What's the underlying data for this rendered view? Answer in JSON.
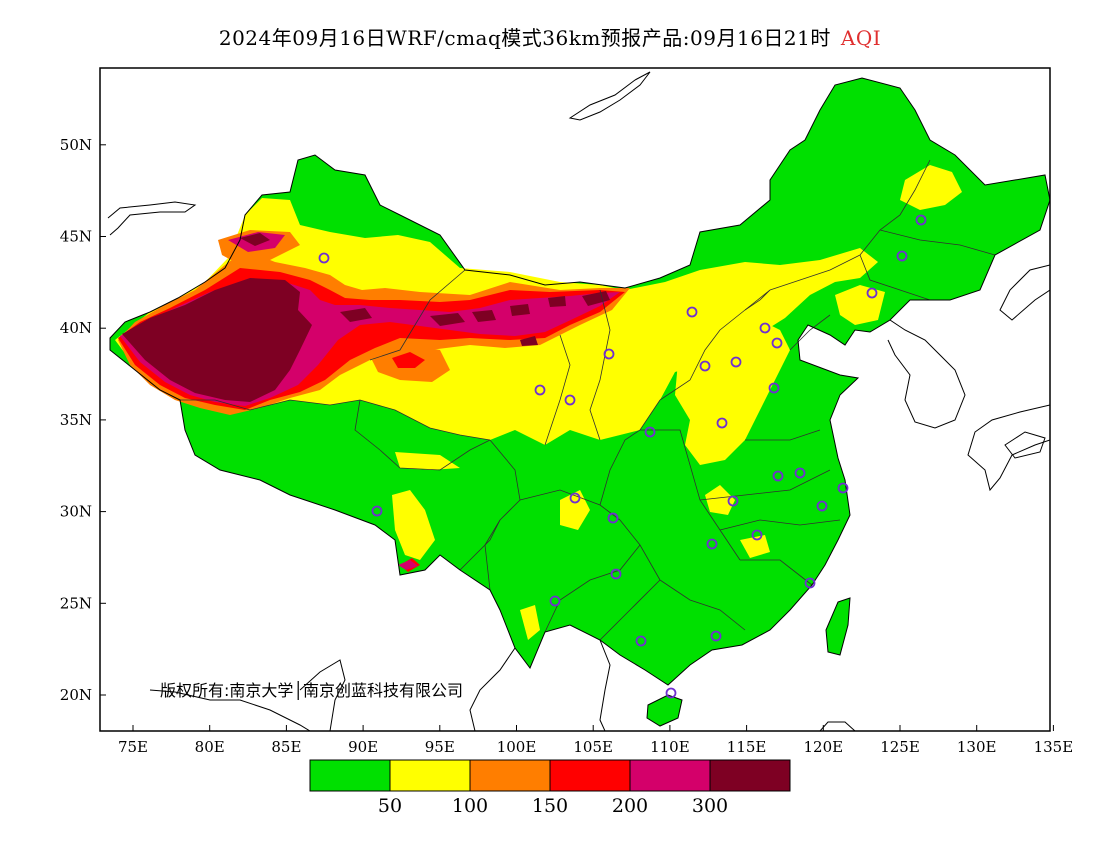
{
  "title": {
    "main": "2024年09月16日WRF/cmaq模式36km预报产品:09月16日21时",
    "variable": "AQI"
  },
  "colors": {
    "good": "#00e000",
    "moderate": "#ffff00",
    "usg": "#ff7e00",
    "unhealthy": "#ff0000",
    "very_unhealthy": "#d4006a",
    "hazardous": "#7e0023",
    "station": "#7030d0"
  },
  "axes": {
    "x_ticks": [
      "75E",
      "80E",
      "85E",
      "90E",
      "95E",
      "100E",
      "105E",
      "110E",
      "115E",
      "120E",
      "125E",
      "130E",
      "135E"
    ],
    "y_ticks": [
      "20N",
      "25N",
      "30N",
      "35N",
      "40N",
      "45N",
      "50N"
    ]
  },
  "copyright": "版权所有:南京大学│南京创蓝科技有限公司",
  "legend": {
    "labels": [
      "50",
      "100",
      "150",
      "200",
      "300"
    ],
    "bins": [
      "good",
      "moderate",
      "usg",
      "unhealthy",
      "very_unhealthy",
      "hazardous"
    ]
  }
}
